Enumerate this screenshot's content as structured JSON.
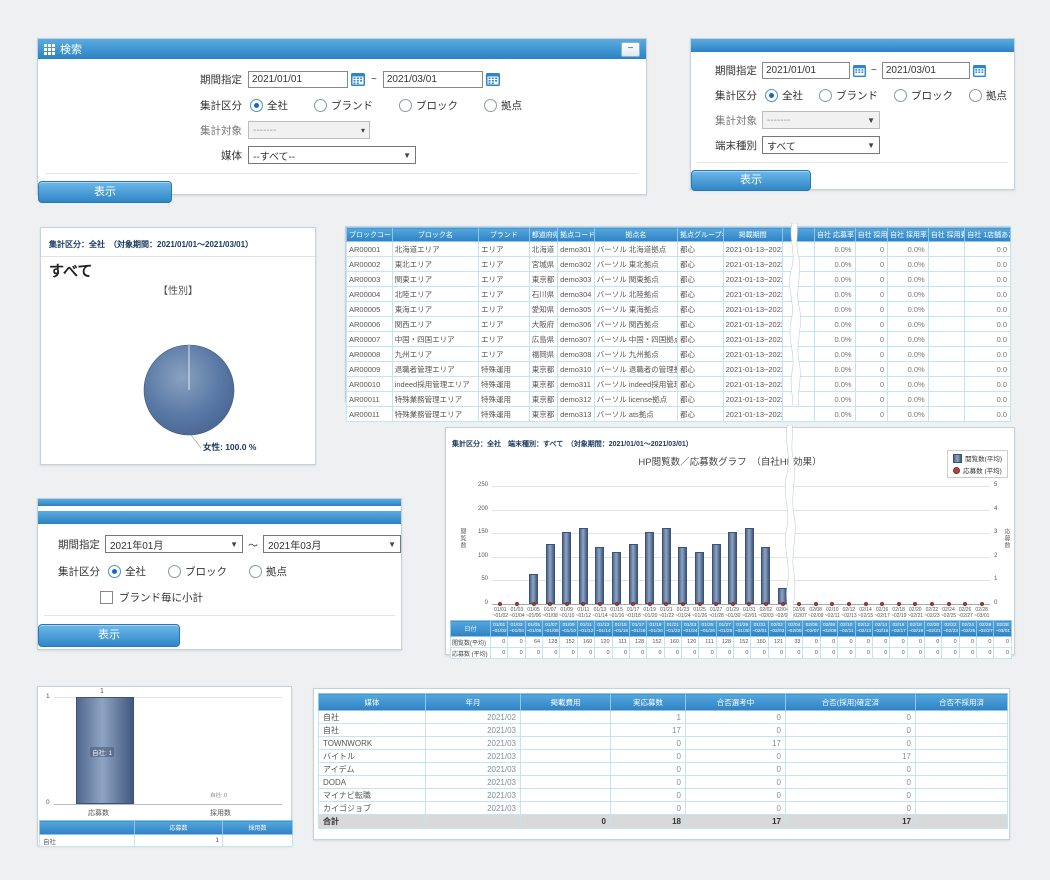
{
  "search1": {
    "title": "検索",
    "minimize_label": "−",
    "period_label": "期間指定",
    "date_from": "2021/01/01",
    "date_to": "2021/03/01",
    "tilde": "~",
    "group_label": "集計区分",
    "group_options": [
      "全社",
      "ブランド",
      "ブロック",
      "拠点"
    ],
    "group_selected_index": 0,
    "target_label": "集計対象",
    "target_value": "-------",
    "media_label": "媒体",
    "media_value": "--すべて--",
    "show_button": "表示"
  },
  "search2": {
    "period_label": "期間指定",
    "date_from": "2021/01/01",
    "date_to": "2021/03/01",
    "tilde": "~",
    "group_label": "集計区分",
    "group_options": [
      "全社",
      "ブランド",
      "ブロック",
      "拠点"
    ],
    "group_selected_index": 0,
    "target_label": "集計対象",
    "target_value": "-------",
    "device_label": "端末種別",
    "device_value": "すべて",
    "show_button": "表示"
  },
  "pie_panel": {
    "meta": "集計区分：全社　（対象期間：2021/01/01～2021/03/01）",
    "subtitle": "すべて",
    "chart_title": "【性別】",
    "slice_label": "女性: 100.0 %"
  },
  "block_table": {
    "headers": [
      "ブロックコード",
      "ブロック名",
      "ブランド",
      "都道府県",
      "拠点コード",
      "拠点名",
      "拠点グループ名",
      "掲載期間"
    ],
    "metric_headers": [
      "自社 応募率",
      "自社 採用数",
      "自社 採用率",
      "自社 採用費用",
      "自社 1店舗あたりの単価"
    ],
    "metric_values": [
      "0.0%",
      "0",
      "0.0%",
      "",
      "0.0"
    ],
    "rows": [
      [
        "AR00001",
        "北海道エリア",
        "エリア",
        "北海道",
        "demo301",
        "バーソル 北海道拠点",
        "都心",
        "2021-01-13~2022-0"
      ],
      [
        "AR00002",
        "東北エリア",
        "エリア",
        "宮城県",
        "demo302",
        "バーソル 東北拠点",
        "都心",
        "2021-01-13~2022-0"
      ],
      [
        "AR00003",
        "関東エリア",
        "エリア",
        "東京都",
        "demo303",
        "バーソル 関東拠点",
        "都心",
        "2021-01-13~2022-0"
      ],
      [
        "AR00004",
        "北陸エリア",
        "エリア",
        "石川県",
        "demo304",
        "バーソル 北陸拠点",
        "都心",
        "2021-01-13~2022-0"
      ],
      [
        "AR00005",
        "東海エリア",
        "エリア",
        "愛知県",
        "demo305",
        "バーソル 東海拠点",
        "都心",
        "2021-01-13~2022-0"
      ],
      [
        "AR00006",
        "関西エリア",
        "エリア",
        "大阪府",
        "demo306",
        "バーソル 関西拠点",
        "都心",
        "2021-01-13~2022-0"
      ],
      [
        "AR00007",
        "中国・四国エリア",
        "エリア",
        "広島県",
        "demo307",
        "バーソル 中国・四国拠点",
        "都心",
        "2021-01-13~2022-0"
      ],
      [
        "AR00008",
        "九州エリア",
        "エリア",
        "福岡県",
        "demo308",
        "バーソル 九州拠点",
        "都心",
        "2021-01-13~2022-0"
      ],
      [
        "AR00009",
        "退職者管理エリア",
        "特殊運用",
        "東京都",
        "demo310",
        "バーソル 退職者の管理拠点？",
        "都心",
        "2021-01-13~2022-0"
      ],
      [
        "AR00010",
        "indeed採用管理エリア",
        "特殊運用",
        "東京都",
        "demo311",
        "バーソル indeed採用管理拠点",
        "都心",
        "2021-01-13~2022-0"
      ],
      [
        "AR00011",
        "特殊業務管理エリア",
        "特殊運用",
        "東京都",
        "demo312",
        "バーソル license拠点",
        "都心",
        "2021-01-13~2022-0"
      ],
      [
        "AR00011",
        "特殊業務管理エリア",
        "特殊運用",
        "東京都",
        "demo313",
        "バーソル ats拠点",
        "都心",
        "2021-01-13~2022-0"
      ]
    ]
  },
  "hp_panel": {
    "meta": "集計区分：全社　端末種別：すべて　（対象期間：2021/01/01～2021/03/01）",
    "title": "HP閲覧数／応募数グラフ　（自社HP効果）",
    "legend": [
      "閲覧数(平均)",
      "応募数 (平均)"
    ],
    "date_header": "日付",
    "row_labels": [
      "閲覧数(平均)",
      "応募数 (平均)"
    ],
    "y_left_label": "閲覧数",
    "y_right_label": "応募数"
  },
  "search3": {
    "period_label": "期間指定",
    "from": "2021年01月",
    "to": "2021年03月",
    "tilde": "～",
    "group_label": "集計区分",
    "group_options": [
      "全社",
      "ブロック",
      "拠点"
    ],
    "group_selected_index": 0,
    "checkbox_label": "ブランド毎に小計",
    "show_button": "表示"
  },
  "mini_panel": {
    "y_top_tick": "1",
    "y_bottom_tick": "0",
    "bar_value_label": "1",
    "bar_inner_label": "自社: 1",
    "right_annotation": "自社: 0",
    "x_labels": [
      "応募数",
      "採用数"
    ],
    "table_headers": [
      "",
      "応募数",
      "採用数"
    ],
    "table_row": [
      "自社",
      "1",
      ""
    ]
  },
  "media_table": {
    "headers": [
      "媒体",
      "年月",
      "掲載費用",
      "実応募数",
      "合否選考中",
      "合否(採用)確定済",
      "合否不採用済"
    ],
    "rows": [
      [
        "自社",
        "2021/02",
        "",
        "1",
        "0",
        "0",
        ""
      ],
      [
        "自社",
        "2021/03",
        "",
        "17",
        "0",
        "0",
        ""
      ],
      [
        "TOWNWORK",
        "2021/03",
        "",
        "0",
        "17",
        "0",
        ""
      ],
      [
        "バイトル",
        "2021/03",
        "",
        "0",
        "0",
        "17",
        ""
      ],
      [
        "アイデム",
        "2021/03",
        "",
        "0",
        "0",
        "0",
        ""
      ],
      [
        "DODA",
        "2021/03",
        "",
        "0",
        "0",
        "0",
        ""
      ],
      [
        "マイナビ転職",
        "2021/03",
        "",
        "0",
        "0",
        "0",
        ""
      ],
      [
        "カイゴジョブ",
        "2021/03",
        "",
        "0",
        "0",
        "0",
        ""
      ]
    ],
    "total_row": [
      "合計",
      "",
      "0",
      "18",
      "17",
      "17",
      ""
    ]
  },
  "chart_data": [
    {
      "id": "gender_pie",
      "type": "pie",
      "title": "【性別】",
      "labels": [
        "女性"
      ],
      "values": [
        100.0
      ],
      "color": "#5b7aa6"
    },
    {
      "id": "hp_views_apps",
      "type": "bar",
      "title": "HP閲覧数／応募数グラフ　（自社HP効果）",
      "categories": [
        "01/01\n~01/02",
        "01/03\n~01/04",
        "01/05\n~01/06",
        "01/07\n~01/08",
        "01/09\n~01/10",
        "01/11\n~01/12",
        "01/13\n~01/14",
        "01/15\n~01/16",
        "01/17\n~01/18",
        "01/19\n~01/20",
        "01/21\n~01/22",
        "01/23\n~01/24",
        "01/25\n~01/26",
        "01/27\n~01/28",
        "01/29\n~01/30",
        "01/31\n~02/01",
        "02/02\n~02/03",
        "02/04\n~02/05",
        "02/06\n~02/07",
        "02/08\n~02/09",
        "02/10\n~02/11",
        "02/12\n~02/13",
        "02/14\n~02/15",
        "02/16\n~02/17",
        "02/18\n~02/19",
        "02/20\n~02/21",
        "02/22\n~02/23",
        "02/24\n~02/25",
        "02/26\n~02/27",
        "02/28\n~03/01"
      ],
      "series": [
        {
          "name": "閲覧数(平均)",
          "values": [
            0,
            0,
            64,
            128,
            152,
            160,
            120,
            111,
            128,
            152,
            160,
            120,
            111,
            128,
            152,
            160,
            121,
            33,
            0,
            0,
            0,
            0,
            0,
            0,
            0,
            0,
            0,
            0,
            0,
            0
          ]
        },
        {
          "name": "応募数 (平均)",
          "values": [
            0,
            0,
            0,
            0,
            0,
            0,
            0,
            0,
            0,
            0,
            0,
            0,
            0,
            0,
            0,
            0,
            0,
            0,
            0,
            0,
            0,
            0,
            0,
            0,
            0,
            0,
            0,
            0,
            0,
            0
          ]
        }
      ],
      "ylim_left": [
        0,
        250
      ],
      "ylim_right": [
        0,
        5
      ],
      "y_left_ticks": [
        0,
        50,
        100,
        150,
        200,
        250
      ],
      "y_right_ticks": [
        0,
        1,
        2,
        3,
        4,
        5
      ],
      "legend_position": "top-right",
      "bar_color": "#51688f",
      "dot_color": "#b0453f"
    },
    {
      "id": "own_site_apps",
      "type": "bar",
      "categories": [
        "応募数",
        "採用数"
      ],
      "values": [
        1,
        0
      ],
      "ylim": [
        0,
        1
      ],
      "bar_color": "#51688f"
    }
  ]
}
